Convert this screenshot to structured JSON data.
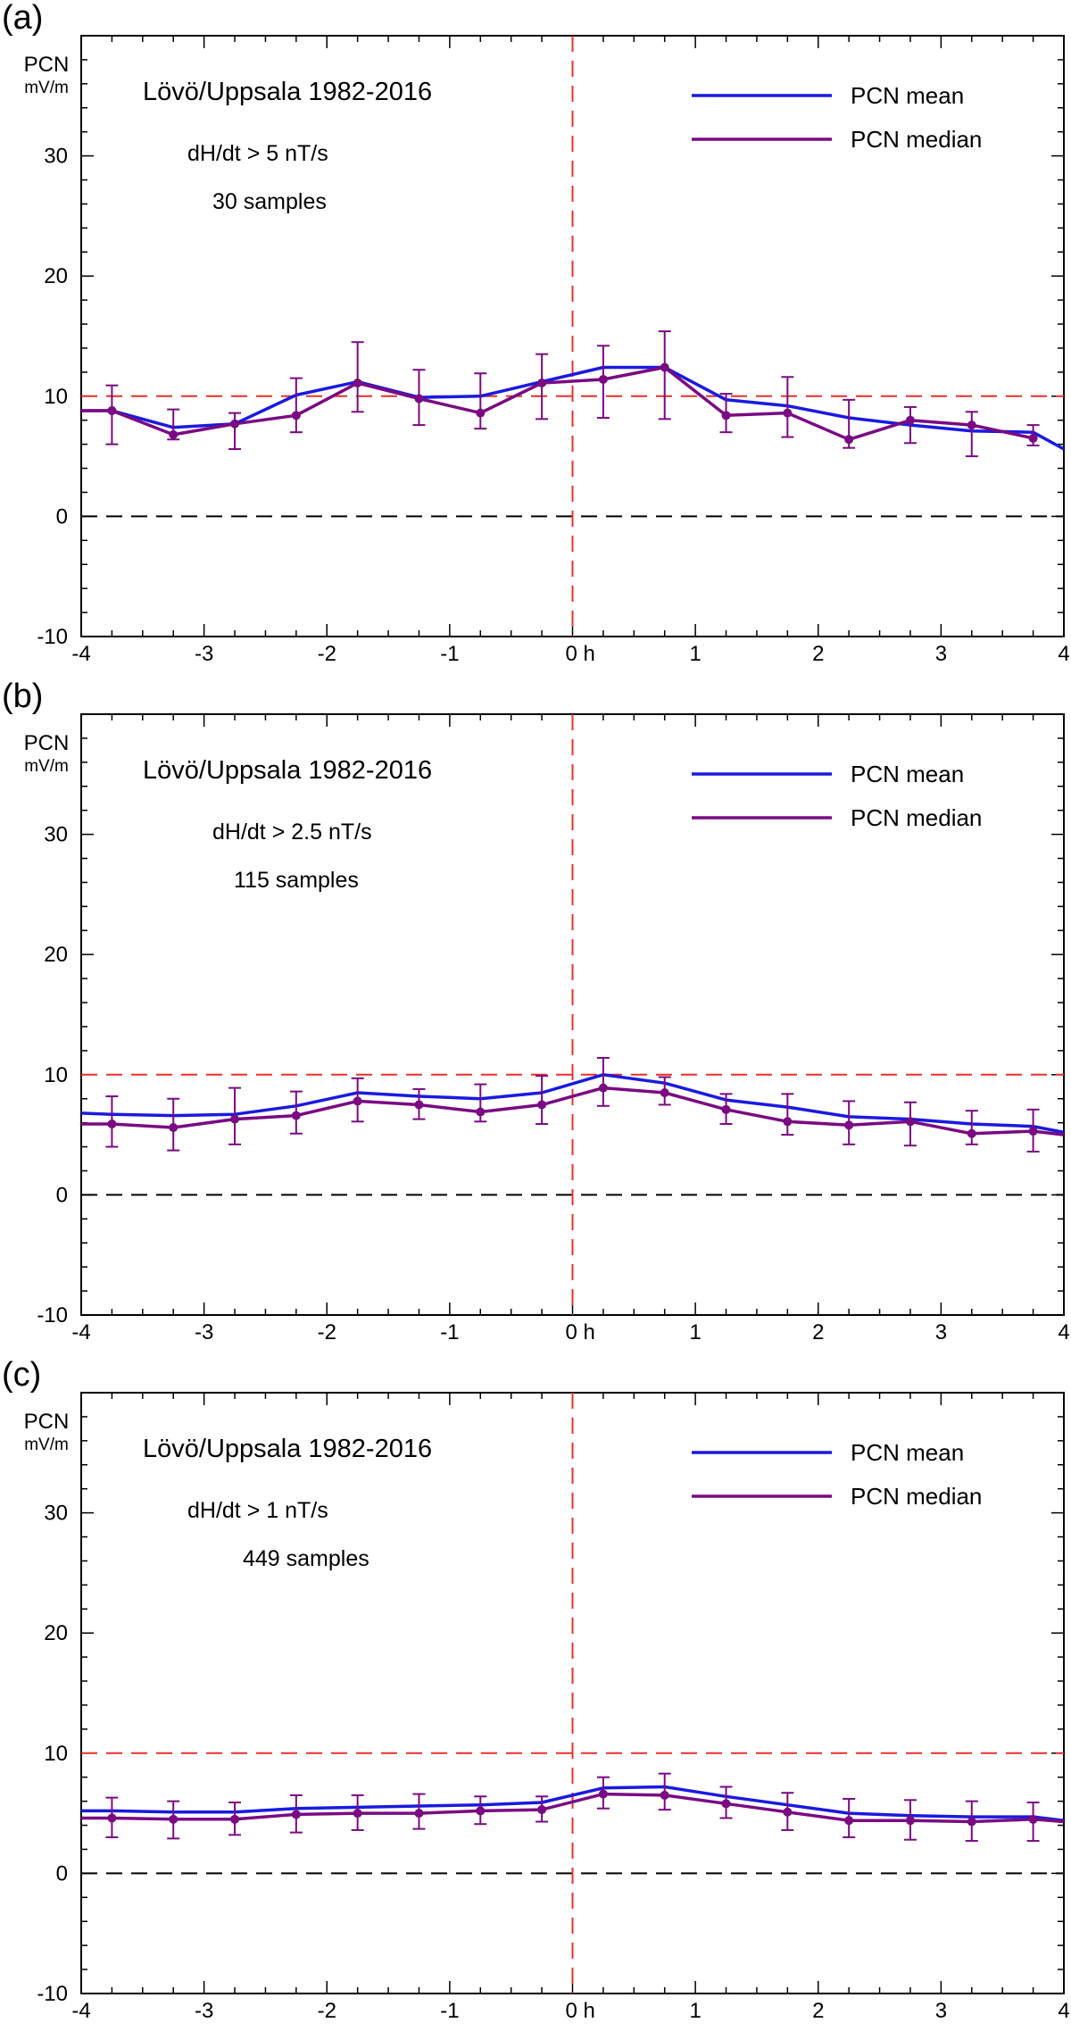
{
  "chart_data": [
    {
      "type": "line",
      "panel_label": "(a)",
      "title": "Lövö/Uppsala 1982-2016",
      "condition": "dH/dt > 5 nT/s",
      "samples": "30 samples",
      "ylabel": "PCN",
      "yunit": "mV/m",
      "xlim": [
        -4,
        4
      ],
      "ylim": [
        -10,
        40
      ],
      "x_ticks": [
        "-4",
        "-3",
        "-2",
        "-1",
        "0 h",
        "1",
        "2",
        "3",
        "4"
      ],
      "y_ticks": [
        "-10",
        "0",
        "10",
        "20",
        "30"
      ],
      "reference_lines": [
        {
          "axis": "y",
          "value": 10,
          "color": "#e8302a",
          "style": "dashed"
        },
        {
          "axis": "y",
          "value": 0,
          "color": "#000000",
          "style": "dashed"
        },
        {
          "axis": "x",
          "value": 0,
          "color": "#e8302a",
          "style": "dashed"
        }
      ],
      "legend_position": "top-right",
      "series": [
        {
          "name": "PCN mean",
          "color": "#1a1ae0",
          "x": [
            -4,
            -3.75,
            -3.25,
            -2.75,
            -2.25,
            -1.75,
            -1.25,
            -0.75,
            -0.25,
            0.25,
            0.75,
            1.25,
            1.75,
            2.25,
            2.75,
            3.25,
            3.75,
            4
          ],
          "y": [
            8.8,
            8.8,
            7.4,
            7.7,
            10.1,
            11.2,
            9.9,
            10.0,
            11.2,
            12.4,
            12.4,
            9.7,
            9.2,
            8.2,
            7.6,
            7.1,
            7.0,
            5.6
          ]
        },
        {
          "name": "PCN median",
          "color": "#7a0a82",
          "x": [
            -4,
            -3.75,
            -3.25,
            -2.75,
            -2.25,
            -1.75,
            -1.25,
            -0.75,
            -0.25,
            0.25,
            0.75,
            1.25,
            1.75,
            2.25,
            2.75,
            3.25,
            3.75
          ],
          "y": [
            8.8,
            8.8,
            6.8,
            7.7,
            8.4,
            11.1,
            9.8,
            8.6,
            11.1,
            11.4,
            12.4,
            8.4,
            8.6,
            6.4,
            8.0,
            7.6,
            6.5
          ],
          "error_low": [
            null,
            6.0,
            6.4,
            5.6,
            7.0,
            8.7,
            7.6,
            7.3,
            8.1,
            8.2,
            8.1,
            7.0,
            6.6,
            5.7,
            6.1,
            5.0,
            5.9
          ],
          "error_high": [
            null,
            10.9,
            8.9,
            8.6,
            11.5,
            14.5,
            12.2,
            11.9,
            13.5,
            14.2,
            15.4,
            10.2,
            11.6,
            9.7,
            9.1,
            8.7,
            7.6
          ]
        }
      ]
    },
    {
      "type": "line",
      "panel_label": "(b)",
      "title": "Lövö/Uppsala 1982-2016",
      "condition": "dH/dt > 2.5 nT/s",
      "samples": "115 samples",
      "ylabel": "PCN",
      "yunit": "mV/m",
      "xlim": [
        -4,
        4
      ],
      "ylim": [
        -10,
        40
      ],
      "x_ticks": [
        "-4",
        "-3",
        "-2",
        "-1",
        "0 h",
        "1",
        "2",
        "3",
        "4"
      ],
      "y_ticks": [
        "-10",
        "0",
        "10",
        "20",
        "30"
      ],
      "reference_lines": [
        {
          "axis": "y",
          "value": 10,
          "color": "#e8302a",
          "style": "dashed"
        },
        {
          "axis": "y",
          "value": 0,
          "color": "#000000",
          "style": "dashed"
        },
        {
          "axis": "x",
          "value": 0,
          "color": "#e8302a",
          "style": "dashed"
        }
      ],
      "legend_position": "top-right",
      "series": [
        {
          "name": "PCN mean",
          "color": "#1a1ae0",
          "x": [
            -4,
            -3.75,
            -3.25,
            -2.75,
            -2.25,
            -1.75,
            -1.25,
            -0.75,
            -0.25,
            0.25,
            0.75,
            1.25,
            1.75,
            2.25,
            2.75,
            3.25,
            3.75,
            4
          ],
          "y": [
            6.8,
            6.7,
            6.6,
            6.7,
            7.4,
            8.5,
            8.2,
            8.0,
            8.5,
            10.0,
            9.3,
            7.9,
            7.3,
            6.5,
            6.3,
            5.9,
            5.7,
            5.2
          ]
        },
        {
          "name": "PCN median",
          "color": "#7a0a82",
          "x": [
            -4,
            -3.75,
            -3.25,
            -2.75,
            -2.25,
            -1.75,
            -1.25,
            -0.75,
            -0.25,
            0.25,
            0.75,
            1.25,
            1.75,
            2.25,
            2.75,
            3.25,
            3.75,
            4
          ],
          "y": [
            5.9,
            5.9,
            5.6,
            6.3,
            6.6,
            7.8,
            7.5,
            6.9,
            7.5,
            8.9,
            8.5,
            7.1,
            6.1,
            5.8,
            6.1,
            5.1,
            5.3,
            5.0
          ],
          "error_low": [
            null,
            4.0,
            3.7,
            4.2,
            5.1,
            6.1,
            6.3,
            6.1,
            5.9,
            7.4,
            7.5,
            5.9,
            5.0,
            4.2,
            4.1,
            4.2,
            3.6,
            null
          ],
          "error_high": [
            null,
            8.2,
            8.0,
            8.9,
            8.6,
            9.7,
            8.8,
            9.2,
            9.9,
            11.4,
            9.8,
            8.4,
            8.4,
            7.8,
            7.7,
            7.0,
            7.1,
            null
          ]
        }
      ]
    },
    {
      "type": "line",
      "panel_label": "(c)",
      "title": "Lövö/Uppsala 1982-2016",
      "condition": "dH/dt > 1 nT/s",
      "samples": "449 samples",
      "ylabel": "PCN",
      "yunit": "mV/m",
      "xlim": [
        -4,
        4
      ],
      "ylim": [
        -10,
        40
      ],
      "x_ticks": [
        "-4",
        "-3",
        "-2",
        "-1",
        "0 h",
        "1",
        "2",
        "3",
        "4"
      ],
      "y_ticks": [
        "-10",
        "0",
        "10",
        "20",
        "30"
      ],
      "reference_lines": [
        {
          "axis": "y",
          "value": 10,
          "color": "#e8302a",
          "style": "dashed"
        },
        {
          "axis": "y",
          "value": 0,
          "color": "#000000",
          "style": "dashed"
        },
        {
          "axis": "x",
          "value": 0,
          "color": "#e8302a",
          "style": "dashed"
        }
      ],
      "legend_position": "top-right",
      "series": [
        {
          "name": "PCN mean",
          "color": "#1a1ae0",
          "x": [
            -4,
            -3.75,
            -3.25,
            -2.75,
            -2.25,
            -1.75,
            -1.25,
            -0.75,
            -0.25,
            0.25,
            0.75,
            1.25,
            1.75,
            2.25,
            2.75,
            3.25,
            3.75,
            4
          ],
          "y": [
            5.2,
            5.2,
            5.1,
            5.1,
            5.4,
            5.5,
            5.6,
            5.7,
            5.9,
            7.1,
            7.2,
            6.4,
            5.7,
            5.0,
            4.8,
            4.7,
            4.7,
            4.4
          ]
        },
        {
          "name": "PCN median",
          "color": "#7a0a82",
          "x": [
            -4,
            -3.75,
            -3.25,
            -2.75,
            -2.25,
            -1.75,
            -1.25,
            -0.75,
            -0.25,
            0.25,
            0.75,
            1.25,
            1.75,
            2.25,
            2.75,
            3.25,
            3.75,
            4
          ],
          "y": [
            4.6,
            4.6,
            4.5,
            4.5,
            4.9,
            5.0,
            5.0,
            5.2,
            5.3,
            6.6,
            6.5,
            5.8,
            5.1,
            4.4,
            4.4,
            4.3,
            4.5,
            4.3
          ],
          "error_low": [
            null,
            3.0,
            2.9,
            3.2,
            3.4,
            3.6,
            3.7,
            4.1,
            4.3,
            5.4,
            5.3,
            4.6,
            3.6,
            3.0,
            2.8,
            2.7,
            2.7,
            null
          ],
          "error_high": [
            null,
            6.3,
            6.0,
            5.9,
            6.5,
            6.5,
            6.6,
            6.4,
            6.4,
            8.0,
            8.3,
            7.2,
            6.7,
            6.2,
            6.1,
            6.0,
            5.9,
            null
          ]
        }
      ]
    }
  ]
}
